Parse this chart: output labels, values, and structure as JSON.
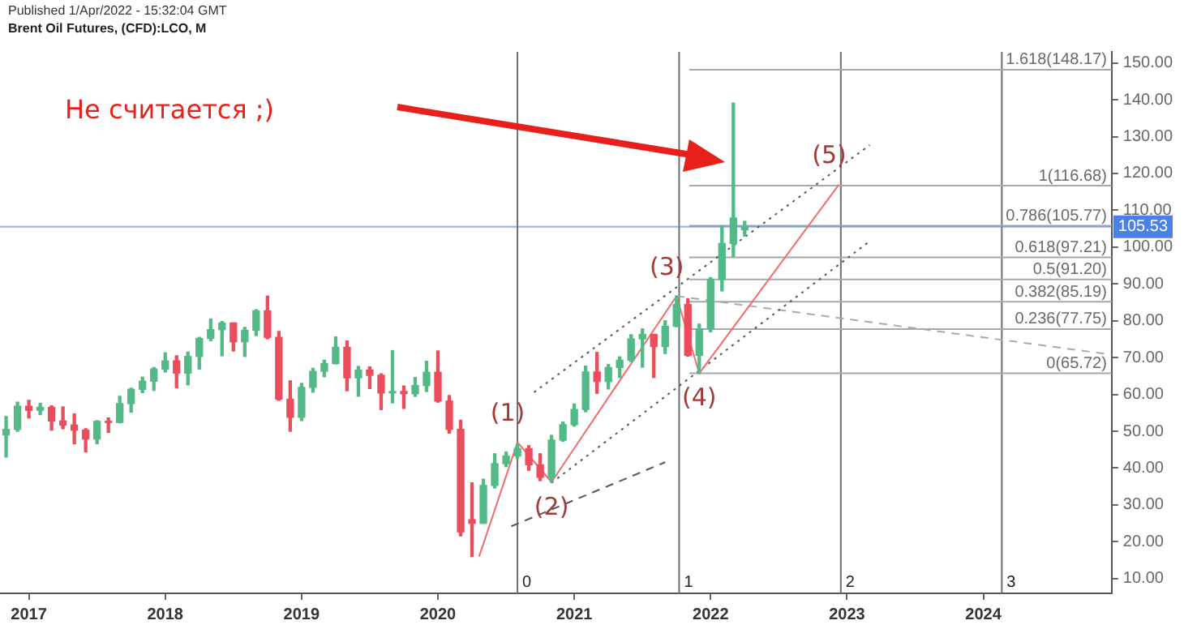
{
  "chart_data": {
    "type": "candlestick",
    "title": "Published 1/Apr/2022 - 15:32:04 GMT",
    "subtitle": "Brent Oil Futures, (CFD):LCO, M",
    "x": [
      "2016-11",
      "2016-12",
      "2017-01",
      "2017-02",
      "2017-03",
      "2017-04",
      "2017-05",
      "2017-06",
      "2017-07",
      "2017-08",
      "2017-09",
      "2017-10",
      "2017-11",
      "2017-12",
      "2018-01",
      "2018-02",
      "2018-03",
      "2018-04",
      "2018-05",
      "2018-06",
      "2018-07",
      "2018-08",
      "2018-09",
      "2018-10",
      "2018-11",
      "2018-12",
      "2019-01",
      "2019-02",
      "2019-03",
      "2019-04",
      "2019-05",
      "2019-06",
      "2019-07",
      "2019-08",
      "2019-09",
      "2019-10",
      "2019-11",
      "2019-12",
      "2020-01",
      "2020-02",
      "2020-03",
      "2020-04",
      "2020-05",
      "2020-06",
      "2020-07",
      "2020-08",
      "2020-09",
      "2020-10",
      "2020-11",
      "2020-12",
      "2021-01",
      "2021-02",
      "2021-03",
      "2021-04",
      "2021-05",
      "2021-06",
      "2021-07",
      "2021-08",
      "2021-09",
      "2021-10",
      "2021-11",
      "2021-12",
      "2022-01",
      "2022-02",
      "2022-03",
      "2022-04"
    ],
    "ohlc": [
      [
        49,
        54,
        43,
        50.5
      ],
      [
        50.5,
        57.9,
        50,
        56.8
      ],
      [
        56.8,
        58.4,
        53.6,
        55.7
      ],
      [
        55.7,
        57.6,
        54.5,
        56.5
      ],
      [
        56.5,
        56.9,
        50.3,
        52.8
      ],
      [
        52.8,
        56.6,
        50.7,
        51.7
      ],
      [
        51.7,
        54.7,
        46.6,
        50.3
      ],
      [
        50.3,
        50.7,
        44.4,
        47.9
      ],
      [
        47.9,
        52.9,
        46.6,
        52.7
      ],
      [
        52.7,
        53.6,
        49.7,
        52.4
      ],
      [
        52.4,
        59.5,
        52.3,
        57.5
      ],
      [
        57.5,
        61.7,
        55.2,
        61.4
      ],
      [
        61.4,
        64.7,
        60.5,
        63.6
      ],
      [
        63.6,
        67.3,
        61.1,
        66.9
      ],
      [
        66.9,
        71.3,
        66.1,
        69.1
      ],
      [
        69.1,
        70.5,
        61.8,
        65.8
      ],
      [
        65.8,
        71.5,
        62.6,
        70.3
      ],
      [
        70.3,
        75.5,
        66.9,
        75.2
      ],
      [
        75.2,
        80.5,
        74.6,
        77.6
      ],
      [
        77.6,
        79.8,
        70.5,
        79.4
      ],
      [
        79.4,
        79.4,
        71.8,
        74.3
      ],
      [
        74.3,
        78.2,
        70.3,
        77.4
      ],
      [
        77.4,
        83,
        76,
        82.7
      ],
      [
        82.7,
        86.7,
        75.1,
        75.5
      ],
      [
        75.5,
        77.1,
        58.4,
        58.7
      ],
      [
        58.7,
        63.7,
        50,
        53.8
      ],
      [
        53.8,
        63,
        52.9,
        61.9
      ],
      [
        61.9,
        67.1,
        60.6,
        66.3
      ],
      [
        66.3,
        69.3,
        64.8,
        68.4
      ],
      [
        68.4,
        75.6,
        68.3,
        72.8
      ],
      [
        72.8,
        74.5,
        61,
        64.5
      ],
      [
        64.5,
        67.6,
        59.5,
        66.6
      ],
      [
        66.6,
        67.5,
        61.6,
        65.2
      ],
      [
        65.2,
        65.6,
        55.9,
        60.4
      ],
      [
        60.4,
        71.9,
        57.7,
        60.8
      ],
      [
        60.8,
        62.3,
        56.2,
        60.2
      ],
      [
        60.2,
        64.6,
        59.5,
        62.4
      ],
      [
        62.4,
        69,
        60.8,
        66
      ],
      [
        66,
        71.8,
        57.9,
        58.2
      ],
      [
        58.2,
        59.7,
        49.5,
        50.5
      ],
      [
        50.5,
        53,
        21.6,
        22.7
      ],
      [
        26,
        36,
        16,
        25
      ],
      [
        25,
        37,
        25,
        35.3
      ],
      [
        35.3,
        43.9,
        34.6,
        41.2
      ],
      [
        41.2,
        44.4,
        40.4,
        43.3
      ],
      [
        43.3,
        46.5,
        42.6,
        45.3
      ],
      [
        45.3,
        46.1,
        39.4,
        40.9
      ],
      [
        40.9,
        43.9,
        36.6,
        37.5
      ],
      [
        37.5,
        48.9,
        36.2,
        47.6
      ],
      [
        47.6,
        52.5,
        47.3,
        51.8
      ],
      [
        51.8,
        57.4,
        51.4,
        55.9
      ],
      [
        55.9,
        67.7,
        55.3,
        66.1
      ],
      [
        66.1,
        71.4,
        60.3,
        63.5
      ],
      [
        63.5,
        68.1,
        61.5,
        67.3
      ],
      [
        67.3,
        70.2,
        64.6,
        69.3
      ],
      [
        69.3,
        76.2,
        68.9,
        75.1
      ],
      [
        75.1,
        77.8,
        67.4,
        76.3
      ],
      [
        76.3,
        76.3,
        64.6,
        73
      ],
      [
        73,
        80,
        71.1,
        78.5
      ],
      [
        78.5,
        86.7,
        78.4,
        84.4
      ],
      [
        84.4,
        86,
        70.4,
        70.6
      ],
      [
        70.6,
        79.1,
        65.7,
        77.8
      ],
      [
        77.8,
        91.7,
        77,
        91.2
      ],
      [
        91.2,
        105.8,
        88.1,
        101
      ],
      [
        101,
        139.1,
        97.4,
        107.9
      ],
      [
        104.7,
        107,
        103,
        105.5
      ]
    ],
    "colors": [
      "#53b987",
      "#53b987",
      "#eb4d5c",
      "#53b987",
      "#eb4d5c",
      "#eb4d5c",
      "#eb4d5c",
      "#eb4d5c",
      "#53b987",
      "#eb4d5c",
      "#53b987",
      "#53b987",
      "#53b987",
      "#53b987",
      "#53b987",
      "#eb4d5c",
      "#53b987",
      "#53b987",
      "#53b987",
      "#53b987",
      "#eb4d5c",
      "#53b987",
      "#53b987",
      "#eb4d5c",
      "#eb4d5c",
      "#eb4d5c",
      "#53b987",
      "#53b987",
      "#53b987",
      "#53b987",
      "#eb4d5c",
      "#53b987",
      "#eb4d5c",
      "#eb4d5c",
      "#53b987",
      "#eb4d5c",
      "#53b987",
      "#53b987",
      "#eb4d5c",
      "#eb4d5c",
      "#eb4d5c",
      "#eb4d5c",
      "#53b987",
      "#53b987",
      "#53b987",
      "#53b987",
      "#eb4d5c",
      "#eb4d5c",
      "#53b987",
      "#53b987",
      "#53b987",
      "#53b987",
      "#eb4d5c",
      "#53b987",
      "#53b987",
      "#53b987",
      "#53b987",
      "#eb4d5c",
      "#53b987",
      "#53b987",
      "#eb4d5c",
      "#53b987",
      "#53b987",
      "#53b987",
      "#53b987",
      "#53b987"
    ],
    "series": [
      {
        "type": "line",
        "color": "#f26d6d",
        "line_style": "solid",
        "x": [
          "2020-04-20",
          "2020-08",
          "2020-11",
          "2021-10",
          "2021-12",
          "2022-12-10"
        ],
        "values": [
          16,
          47,
          36.2,
          86.7,
          65.7,
          117
        ]
      },
      {
        "type": "line",
        "color": "#555555",
        "line_style": "dotted",
        "x": [
          "2020-09-15",
          "2023-03"
        ],
        "values": [
          60.6,
          127.7
        ]
      },
      {
        "type": "line",
        "color": "#555555",
        "line_style": "dotted",
        "x": [
          "2020-11",
          "2023-03"
        ],
        "values": [
          36,
          101.6
        ]
      },
      {
        "type": "line",
        "color": "#555555",
        "line_style": "dashed",
        "x": [
          "2020-07-15",
          "2021-09"
        ],
        "values": [
          24.2,
          41.6
        ]
      },
      {
        "type": "line",
        "color": "#aaaaaa",
        "line_style": "dashed",
        "x": [
          "2021-10",
          "2024-12-10"
        ],
        "values": [
          86.7,
          70.8
        ]
      }
    ],
    "xlim": [
      "2016-10-15",
      "2024-12-10"
    ],
    "xticks": [
      "2017",
      "2018",
      "2019",
      "2020",
      "2021",
      "2022",
      "2023",
      "2024"
    ],
    "ylim": [
      6,
      153
    ],
    "yticks": [
      {
        "value": 10,
        "label": "10.00"
      },
      {
        "value": 20,
        "label": "20.00"
      },
      {
        "value": 30,
        "label": "30.00"
      },
      {
        "value": 40,
        "label": "40.00"
      },
      {
        "value": 50,
        "label": "50.00"
      },
      {
        "value": 60,
        "label": "60.00"
      },
      {
        "value": 70,
        "label": "70.00"
      },
      {
        "value": 80,
        "label": "80.00"
      },
      {
        "value": 90,
        "label": "90.00"
      },
      {
        "value": 100,
        "label": "100.00"
      },
      {
        "value": 110,
        "label": "110.00"
      },
      {
        "value": 120,
        "label": "120.00"
      },
      {
        "value": 130,
        "label": "130.00"
      },
      {
        "value": 140,
        "label": "140.00"
      },
      {
        "value": 150,
        "label": "150.00"
      }
    ],
    "ref_lines": [
      {
        "axis": "x",
        "value": "2020-08",
        "label": "0"
      },
      {
        "axis": "x",
        "value": "2021-10-08",
        "label": "1"
      },
      {
        "axis": "x",
        "value": "2022-12-15",
        "label": "2"
      },
      {
        "axis": "x",
        "value": "2024-02-20",
        "label": "3"
      },
      {
        "axis": "y",
        "value": 148.17,
        "label": "1.618(148.17)"
      },
      {
        "axis": "y",
        "value": 116.68,
        "label": "1(116.68)"
      },
      {
        "axis": "y",
        "value": 105.77,
        "label": "0.786(105.77)"
      },
      {
        "axis": "y",
        "value": 97.21,
        "label": "0.618(97.21)"
      },
      {
        "axis": "y",
        "value": 91.2,
        "label": "0.5(91.20)"
      },
      {
        "axis": "y",
        "value": 85.19,
        "label": "0.382(85.19)"
      },
      {
        "axis": "y",
        "value": 77.75,
        "label": "0.236(77.75)"
      },
      {
        "axis": "y",
        "value": 65.72,
        "label": "0(65.72)"
      },
      {
        "axis": "y",
        "value": 105.53,
        "label": "105.53",
        "color": "#4a80e8"
      }
    ],
    "annotations": [
      "Не считается ;)",
      {
        "text": "(1)",
        "x": "2020-08",
        "y": 47
      },
      {
        "text": "(2)",
        "x": "2020-11",
        "y": 36.2
      },
      {
        "text": "(3)",
        "x": "2021-10",
        "y": 86.7
      },
      {
        "text": "(4)",
        "x": "2021-12",
        "y": 65.7
      },
      {
        "text": "(5)",
        "x": "2022-12-10",
        "y": 117
      }
    ],
    "grid": false,
    "legend": false
  }
}
